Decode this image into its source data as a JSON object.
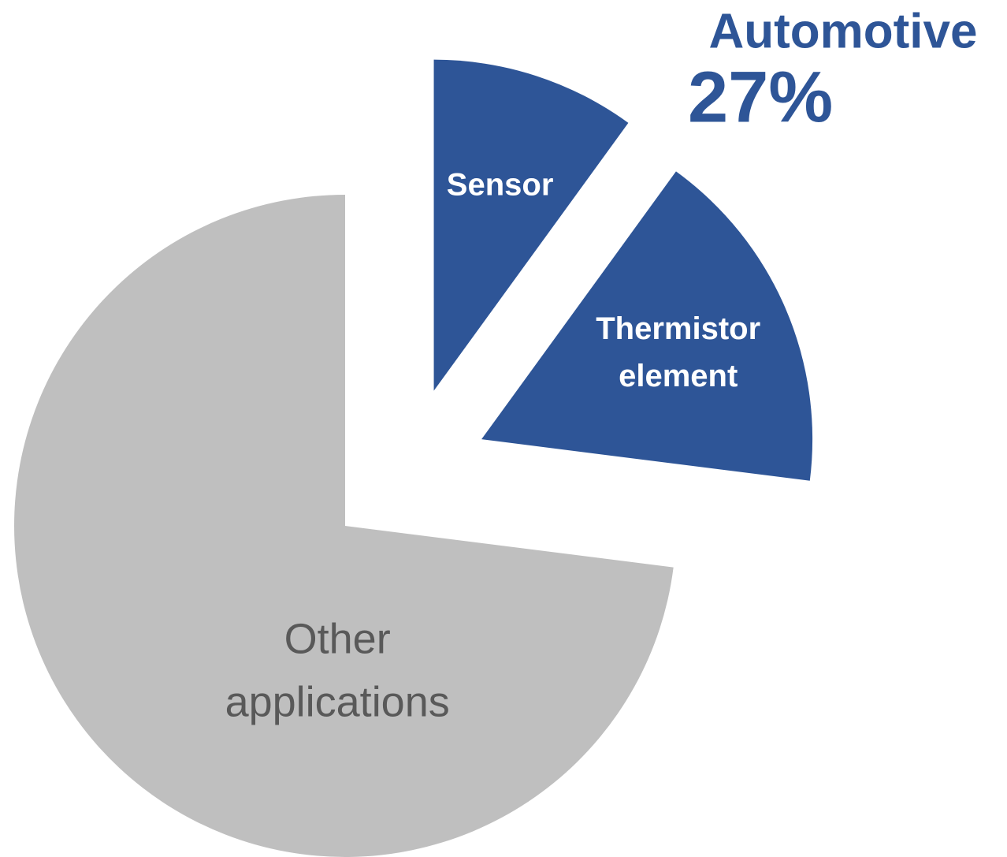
{
  "chart_data": {
    "type": "pie",
    "categories": [
      "Sensor",
      "Thermistor element",
      "Other applications"
    ],
    "values": [
      10,
      17,
      73
    ],
    "colors": [
      "#2e5597",
      "#2e5597",
      "#bfbfbf"
    ],
    "label_colors": [
      "#ffffff",
      "#ffffff",
      "#595959"
    ],
    "annotation": {
      "text": "Automotive",
      "value_label": "27%"
    }
  }
}
